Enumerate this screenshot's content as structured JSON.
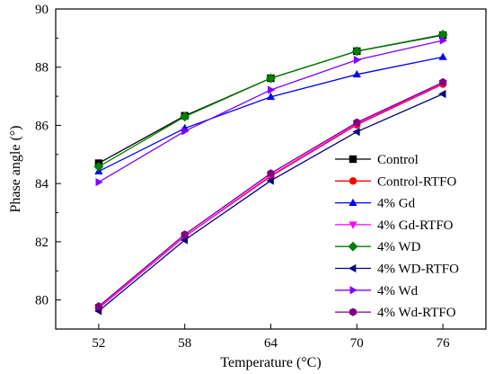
{
  "chart_data": {
    "type": "line",
    "title": "",
    "xlabel": "Temperature (°C)",
    "ylabel": "Phase angle (°)",
    "x": [
      52,
      58,
      64,
      70,
      76
    ],
    "xticks": [
      "52",
      "58",
      "64",
      "70",
      "76"
    ],
    "yticks": [
      "80",
      "82",
      "84",
      "86",
      "88",
      "90"
    ],
    "xlim": [
      49,
      79
    ],
    "ylim": [
      79,
      90
    ],
    "grid": false,
    "legend_position": "bottom-right",
    "series": [
      {
        "name": "Control",
        "color": "#000000",
        "marker": "square",
        "values": [
          84.7,
          86.33,
          87.62,
          88.55,
          89.1
        ]
      },
      {
        "name": "Control-RTFO",
        "color": "#ff0000",
        "marker": "circle",
        "values": [
          79.72,
          82.18,
          84.25,
          86.02,
          87.42
        ]
      },
      {
        "name": "4% Gd",
        "color": "#0000ff",
        "marker": "triangle-up",
        "values": [
          84.42,
          85.9,
          86.98,
          87.75,
          88.35
        ]
      },
      {
        "name": "4% Gd-RTFO",
        "color": "#ff00ff",
        "marker": "triangle-down",
        "values": [
          79.72,
          82.18,
          84.28,
          86.05,
          87.45
        ]
      },
      {
        "name": "4% WD",
        "color": "#008000",
        "marker": "diamond",
        "values": [
          84.58,
          86.3,
          87.62,
          88.55,
          89.12
        ]
      },
      {
        "name": "4% WD-RTFO",
        "color": "#000080",
        "marker": "triangle-left",
        "values": [
          79.62,
          82.06,
          84.1,
          85.78,
          87.08
        ]
      },
      {
        "name": "4% Wd",
        "color": "#8000ff",
        "marker": "triangle-right",
        "values": [
          84.05,
          85.8,
          87.22,
          88.25,
          88.92
        ]
      },
      {
        "name": "4% Wd-RTFO",
        "color": "#800080",
        "marker": "hexagon",
        "values": [
          79.78,
          82.25,
          84.35,
          86.1,
          87.48
        ]
      }
    ]
  }
}
